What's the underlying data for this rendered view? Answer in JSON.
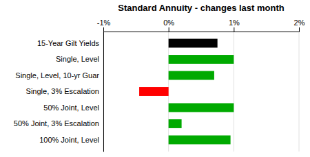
{
  "chart_data": {
    "type": "bar",
    "orientation": "horizontal",
    "title": "Standard Annuity - changes last month",
    "categories": [
      "100% Joint, Level",
      "50% Joint, 3% Escalation",
      "50% Joint, Level",
      "Single, 3% Escalation",
      "Single, Level, 10-yr Guar",
      "Single, Level",
      "15-Year Gilt Yields"
    ],
    "values": [
      0.95,
      0.2,
      1.0,
      -0.45,
      0.7,
      1.0,
      0.75
    ],
    "colors": [
      "#00aa00",
      "#00aa00",
      "#00aa00",
      "#ff0000",
      "#00aa00",
      "#00aa00",
      "#000000"
    ],
    "xlim": [
      -1.0,
      2.0
    ],
    "xticks": [
      {
        "value": -1.0,
        "label": "-1%"
      },
      {
        "value": 0.0,
        "label": "0%"
      },
      {
        "value": 1.0,
        "label": "1%"
      },
      {
        "value": 2.0,
        "label": "2%"
      }
    ],
    "grid": true
  }
}
